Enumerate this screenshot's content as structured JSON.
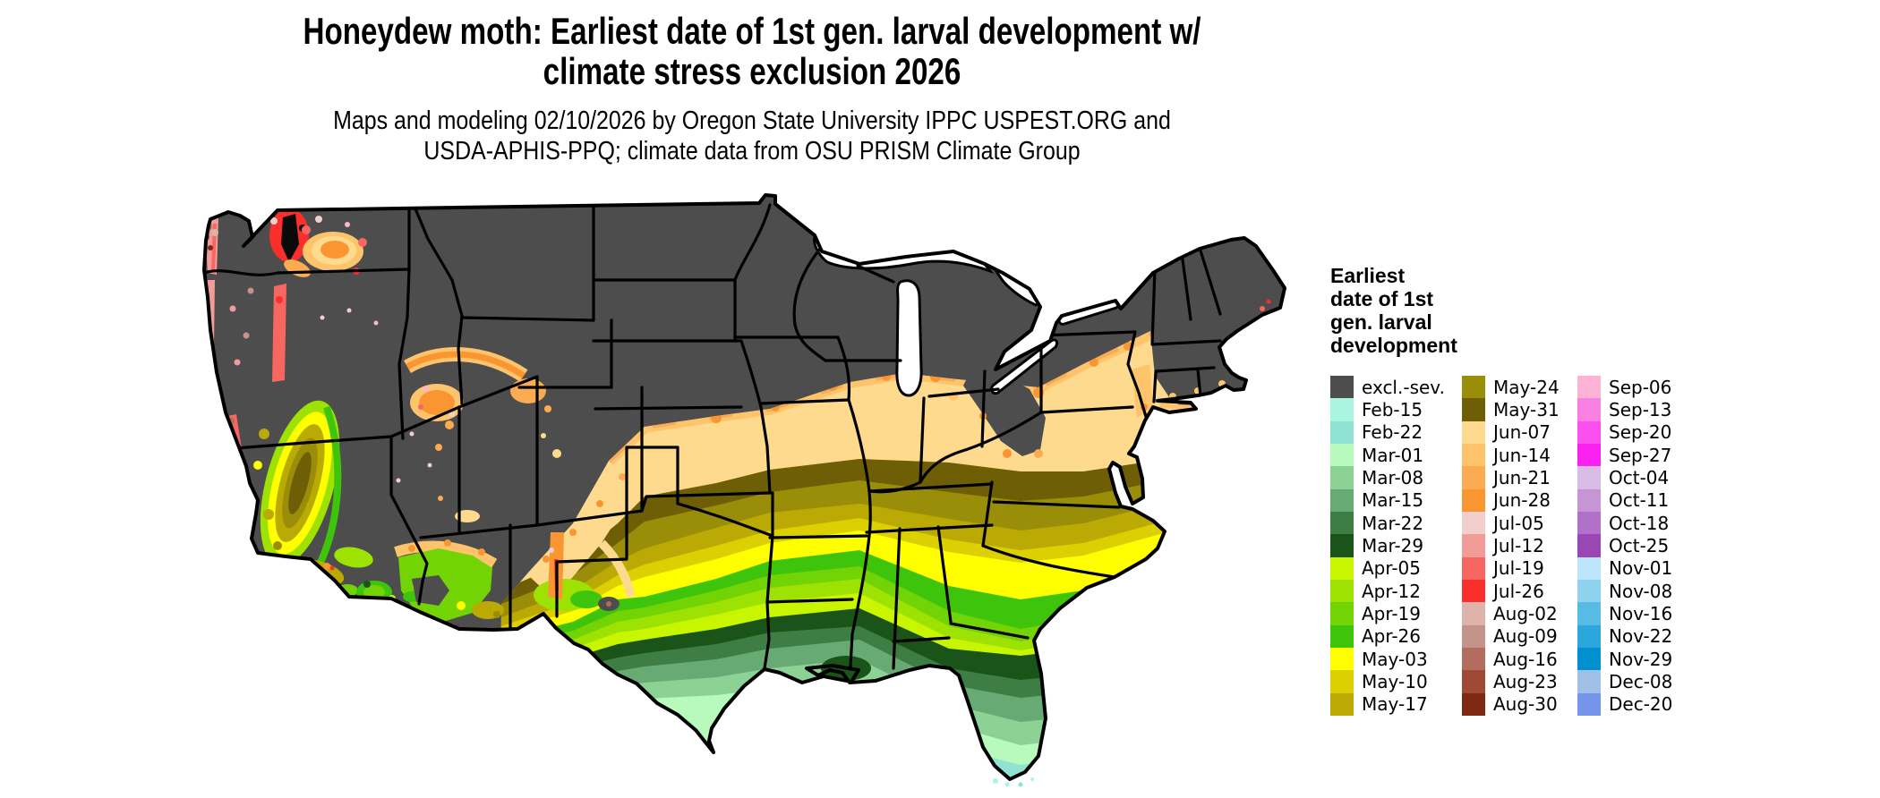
{
  "title": {
    "line1": "Honeydew moth: Earliest date of 1st gen. larval development w/",
    "line2": "climate stress exclusion 2026"
  },
  "subtitle": {
    "line1": "Maps and modeling 02/10/2026 by Oregon State University IPPC USPEST.ORG and",
    "line2": "USDA-APHIS-PPQ; climate data from OSU PRISM Climate Group"
  },
  "legend": {
    "title_lines": [
      "Earliest",
      "date of 1st",
      "gen. larval",
      "development"
    ],
    "columns": [
      [
        {
          "label": "excl.-sev.",
          "color": "#4d4d4d"
        },
        {
          "label": "Feb-15",
          "color": "#aaf5e0"
        },
        {
          "label": "Feb-22",
          "color": "#90e2d3"
        },
        {
          "label": "Mar-01",
          "color": "#b7fabb"
        },
        {
          "label": "Mar-08",
          "color": "#8cd294"
        },
        {
          "label": "Mar-15",
          "color": "#68aa74"
        },
        {
          "label": "Mar-22",
          "color": "#3e7e44"
        },
        {
          "label": "Mar-29",
          "color": "#1a5418"
        },
        {
          "label": "Apr-05",
          "color": "#c8f500"
        },
        {
          "label": "Apr-12",
          "color": "#9de203"
        },
        {
          "label": "Apr-19",
          "color": "#72d305"
        },
        {
          "label": "Apr-26",
          "color": "#3fc40c"
        },
        {
          "label": "May-03",
          "color": "#ffff00"
        },
        {
          "label": "May-10",
          "color": "#ddd002"
        },
        {
          "label": "May-17",
          "color": "#bba904"
        }
      ],
      [
        {
          "label": "May-24",
          "color": "#9a8e09"
        },
        {
          "label": "May-31",
          "color": "#6e5e06"
        },
        {
          "label": "Jun-07",
          "color": "#fdda8d"
        },
        {
          "label": "Jun-14",
          "color": "#fdc46c"
        },
        {
          "label": "Jun-21",
          "color": "#fbab51"
        },
        {
          "label": "Jun-28",
          "color": "#fa9632"
        },
        {
          "label": "Jul-05",
          "color": "#f2cfcc"
        },
        {
          "label": "Jul-12",
          "color": "#f29c99"
        },
        {
          "label": "Jul-19",
          "color": "#f76660"
        },
        {
          "label": "Jul-26",
          "color": "#fa2f2b"
        },
        {
          "label": "Aug-02",
          "color": "#ddb3ab"
        },
        {
          "label": "Aug-09",
          "color": "#c4948a"
        },
        {
          "label": "Aug-16",
          "color": "#b26d5e"
        },
        {
          "label": "Aug-23",
          "color": "#a04a35"
        },
        {
          "label": "Aug-30",
          "color": "#7e2812"
        }
      ],
      [
        {
          "label": "Sep-06",
          "color": "#fdb3d5"
        },
        {
          "label": "Sep-13",
          "color": "#fb80e3"
        },
        {
          "label": "Sep-20",
          "color": "#fb4ff0"
        },
        {
          "label": "Sep-27",
          "color": "#fb22f1"
        },
        {
          "label": "Oct-04",
          "color": "#d9bce5"
        },
        {
          "label": "Oct-11",
          "color": "#c795d4"
        },
        {
          "label": "Oct-18",
          "color": "#b271c8"
        },
        {
          "label": "Oct-25",
          "color": "#9a46b4"
        },
        {
          "label": "Nov-01",
          "color": "#bce6fb"
        },
        {
          "label": "Nov-08",
          "color": "#8fd2ee"
        },
        {
          "label": "Nov-16",
          "color": "#57bbe4"
        },
        {
          "label": "Nov-22",
          "color": "#2ba7db"
        },
        {
          "label": "Nov-29",
          "color": "#0090cf"
        },
        {
          "label": "Dec-08",
          "color": "#a0c0e8"
        },
        {
          "label": "Dec-20",
          "color": "#7495ea"
        }
      ]
    ]
  },
  "map": {
    "background": "#ffffff",
    "water_color": "#ffffff",
    "border_color": "#000000",
    "base_region": "excl.-sev.",
    "band_sequence_north_to_south": [
      "Jun-07",
      "May-31",
      "May-24",
      "May-17",
      "May-10",
      "May-03",
      "Apr-26",
      "Apr-19",
      "Apr-12",
      "Apr-05",
      "Mar-29",
      "Mar-22",
      "Mar-15",
      "Mar-08",
      "Mar-01",
      "Feb-22",
      "Feb-15"
    ]
  }
}
